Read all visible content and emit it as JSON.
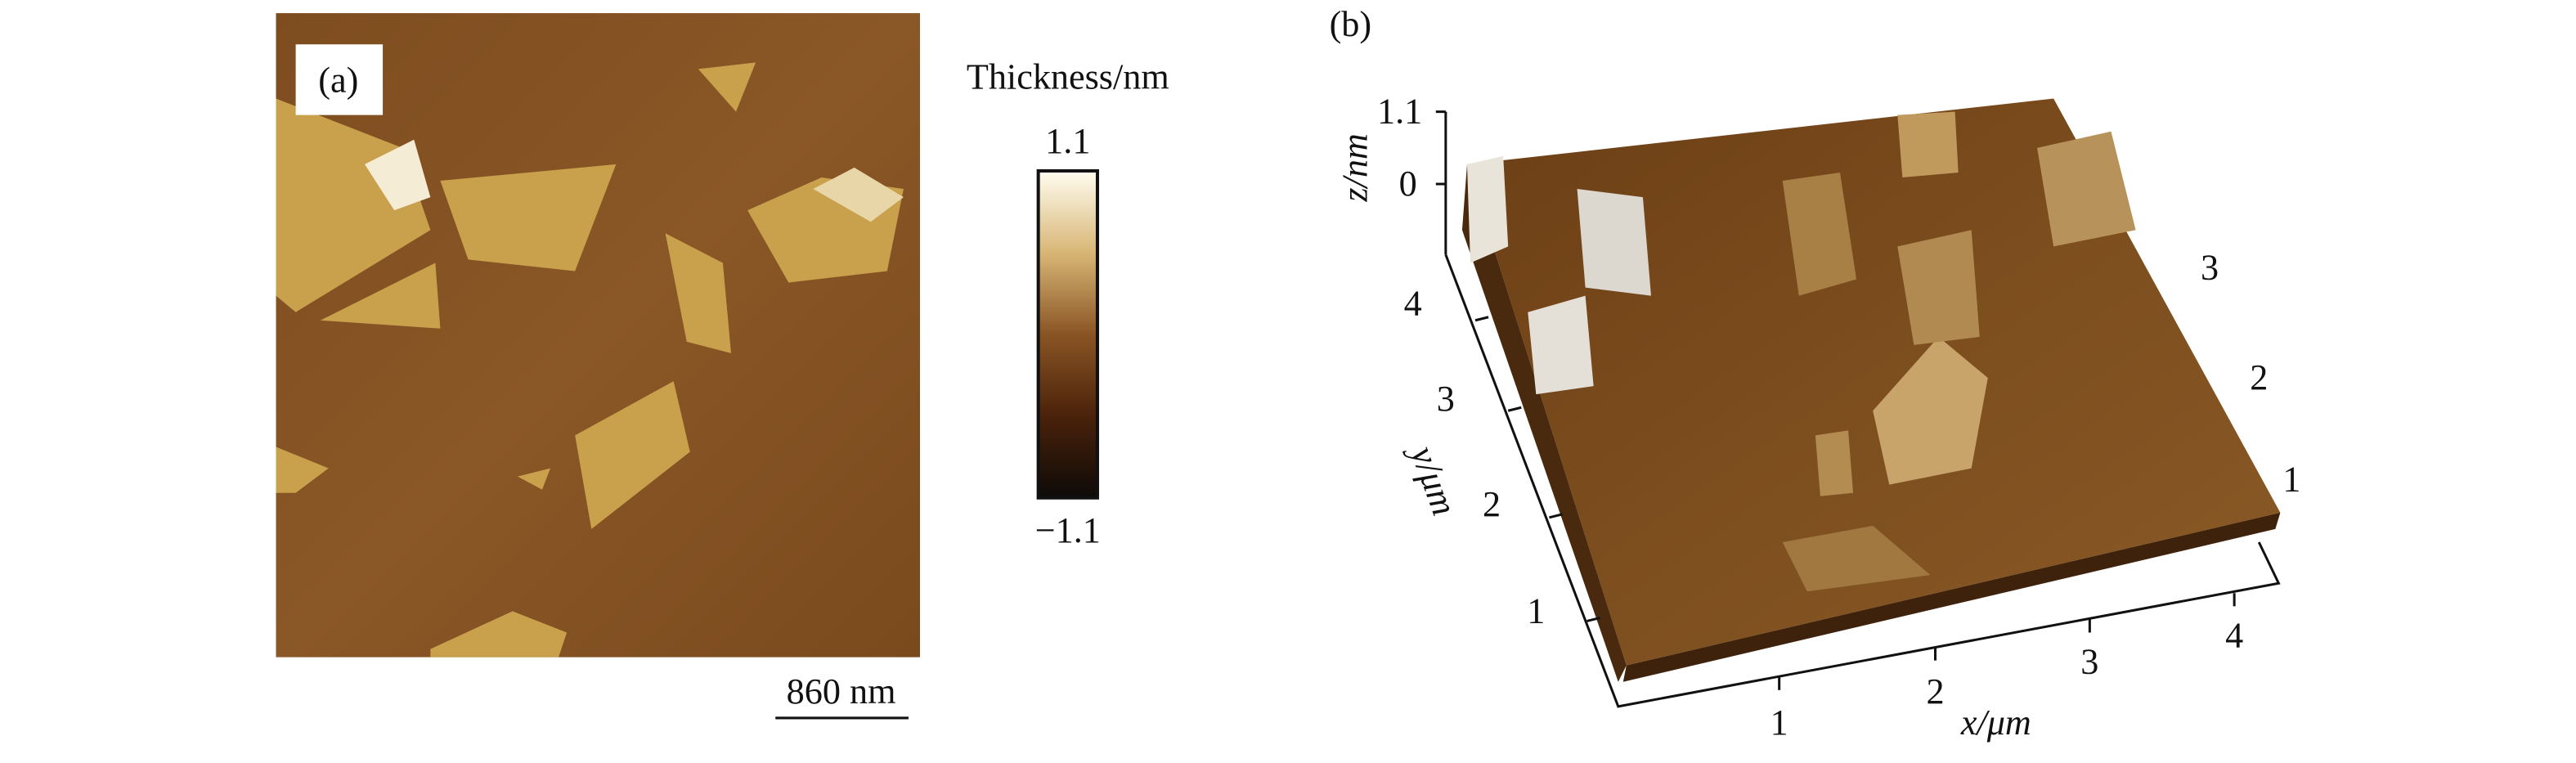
{
  "panel_a": {
    "label": "(a)",
    "scale_bar": "860 nm",
    "colorbar": {
      "title": "Thickness/nm",
      "max": "1.1",
      "min": "−1.1"
    }
  },
  "panel_b": {
    "label": "(b)",
    "z_axis": {
      "label": "z/nm",
      "ticks": [
        1.1,
        0
      ]
    },
    "y_axis": {
      "label": "y/μm",
      "ticks": [
        4,
        3,
        2,
        1
      ]
    },
    "x_axis": {
      "label": "x/μm",
      "ticks": [
        1,
        2,
        3,
        4
      ]
    },
    "right_ticks": [
      3,
      2,
      1
    ]
  }
}
